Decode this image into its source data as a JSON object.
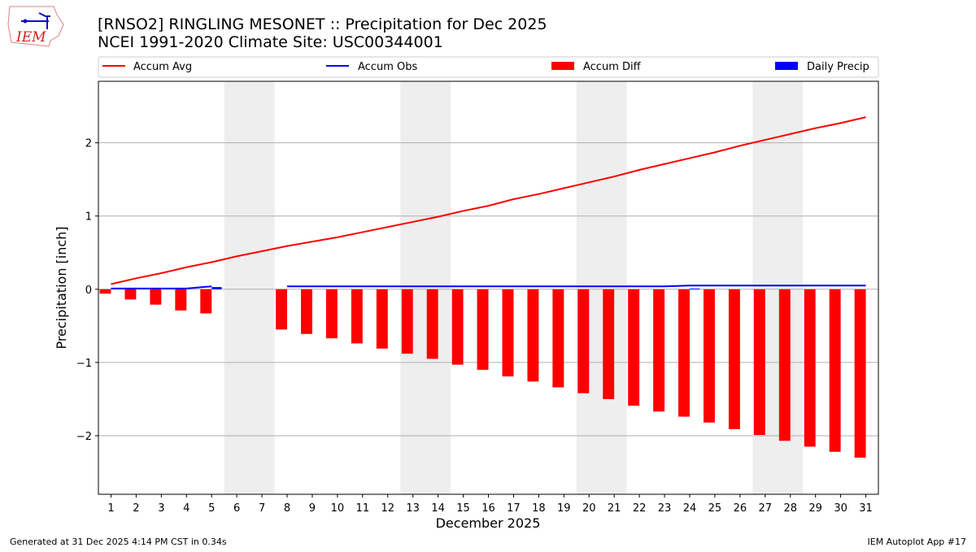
{
  "header": {
    "title": "[RNSO2] RINGLING MESONET :: Precipitation for Dec 2025",
    "subtitle": "NCEI 1991-2020 Climate Site: USC00344001",
    "logo_text": "IEM"
  },
  "footer": {
    "left": "Generated at 31 Dec 2025 4:14 PM CST in 0.34s",
    "right": "IEM Autoplot App #17"
  },
  "chart_data": {
    "type": "bar+line",
    "xlabel": "December 2025",
    "ylabel": "Precipitation [inch]",
    "xlim": [
      0.5,
      31.5
    ],
    "ylim": [
      -2.8,
      2.84
    ],
    "yticks": [
      -2,
      -1,
      0,
      1,
      2
    ],
    "ytick_labels": [
      "−2",
      "−1",
      "0",
      "1",
      "2"
    ],
    "xticks": [
      1,
      2,
      3,
      4,
      5,
      6,
      7,
      8,
      9,
      10,
      11,
      12,
      13,
      14,
      15,
      16,
      17,
      18,
      19,
      20,
      21,
      22,
      23,
      24,
      25,
      26,
      27,
      28,
      29,
      30,
      31
    ],
    "grid": "horizontal",
    "legend_placement": "top, above plot",
    "weekend_shading": [
      [
        5.5,
        7.5
      ],
      [
        12.5,
        14.5
      ],
      [
        19.5,
        21.5
      ],
      [
        26.5,
        28.5
      ]
    ],
    "colors": {
      "accum_avg": "#ff0000",
      "accum_obs": "#0000ff",
      "accum_diff": "#ff0000",
      "daily_precip": "#0000ff",
      "shade": "#eeeeee"
    },
    "series": [
      {
        "name": "Accum Avg",
        "kind": "line",
        "x": [
          1,
          2,
          3,
          4,
          5,
          6,
          7,
          8,
          9,
          10,
          11,
          12,
          13,
          14,
          15,
          16,
          17,
          18,
          19,
          20,
          21,
          22,
          23,
          24,
          25,
          26,
          27,
          28,
          29,
          30,
          31
        ],
        "values": [
          0.07,
          0.15,
          0.22,
          0.3,
          0.37,
          0.45,
          0.52,
          0.59,
          0.65,
          0.71,
          0.78,
          0.85,
          0.92,
          0.99,
          1.07,
          1.14,
          1.23,
          1.3,
          1.38,
          1.46,
          1.54,
          1.63,
          1.71,
          1.79,
          1.87,
          1.96,
          2.04,
          2.12,
          2.2,
          2.27,
          2.35
        ]
      },
      {
        "name": "Accum Obs",
        "kind": "line",
        "x": [
          1,
          2,
          3,
          4,
          5,
          8,
          9,
          10,
          11,
          12,
          13,
          14,
          15,
          16,
          17,
          18,
          19,
          20,
          21,
          22,
          23,
          24,
          25,
          26,
          27,
          28,
          29,
          30,
          31
        ],
        "values": [
          0.01,
          0.01,
          0.01,
          0.01,
          0.04,
          0.04,
          0.04,
          0.04,
          0.04,
          0.04,
          0.04,
          0.04,
          0.04,
          0.04,
          0.04,
          0.04,
          0.04,
          0.04,
          0.04,
          0.04,
          0.04,
          0.05,
          0.05,
          0.05,
          0.05,
          0.05,
          0.05,
          0.05,
          0.05
        ]
      },
      {
        "name": "Accum Diff",
        "kind": "bar",
        "x": [
          1,
          2,
          3,
          4,
          5,
          8,
          9,
          10,
          11,
          12,
          13,
          14,
          15,
          16,
          17,
          18,
          19,
          20,
          21,
          22,
          23,
          24,
          25,
          26,
          27,
          28,
          29,
          30,
          31
        ],
        "values": [
          -0.06,
          -0.14,
          -0.21,
          -0.29,
          -0.33,
          -0.55,
          -0.61,
          -0.67,
          -0.74,
          -0.81,
          -0.88,
          -0.95,
          -1.03,
          -1.1,
          -1.19,
          -1.26,
          -1.34,
          -1.42,
          -1.5,
          -1.59,
          -1.67,
          -1.74,
          -1.82,
          -1.91,
          -1.99,
          -2.07,
          -2.15,
          -2.22,
          -2.3
        ]
      },
      {
        "name": "Daily Precip",
        "kind": "bar",
        "x": [
          5,
          24
        ],
        "values": [
          0.03,
          0.01
        ]
      }
    ]
  }
}
